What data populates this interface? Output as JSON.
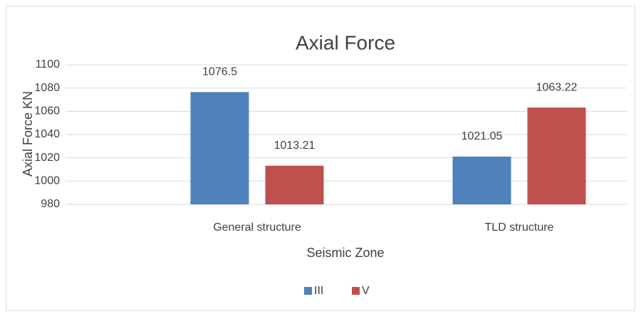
{
  "chart_data": {
    "type": "bar",
    "title": "Axial Force",
    "y_label": "Axial Force KN",
    "x_label": "Seismic Zone",
    "categories": [
      "General structure",
      "TLD structure"
    ],
    "series": [
      {
        "name": "III",
        "color": "#4f81bd",
        "values": [
          1076.5,
          1021.05
        ]
      },
      {
        "name": "V",
        "color": "#c0504d",
        "values": [
          1013.21,
          1063.22
        ]
      }
    ],
    "ylim": [
      980,
      1100
    ],
    "yticks": [
      980,
      1000,
      1020,
      1040,
      1060,
      1080,
      1100
    ],
    "grid": true,
    "legend": "bottom"
  }
}
